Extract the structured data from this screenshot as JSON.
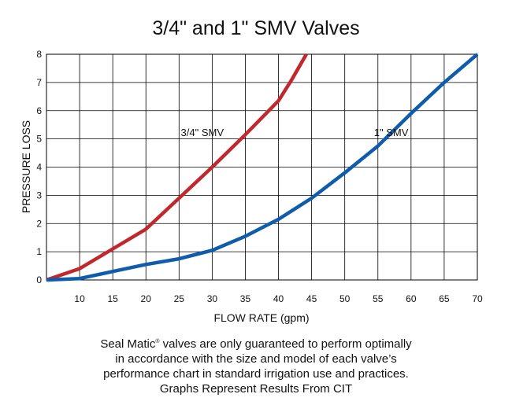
{
  "chart_data": {
    "type": "line",
    "title": "3/4\"  and 1\"  SMV Valves",
    "xlabel": "FLOW RATE (gpm)",
    "ylabel": "PRESSURE LOSS",
    "xlim": [
      5,
      70
    ],
    "ylim": [
      0,
      8
    ],
    "x_ticks": [
      10,
      15,
      20,
      25,
      30,
      35,
      40,
      45,
      50,
      55,
      60,
      65,
      70
    ],
    "y_ticks": [
      0,
      1,
      2,
      3,
      4,
      5,
      6,
      7,
      8
    ],
    "grid": true,
    "series": [
      {
        "name": "3/4\" SMV",
        "color": "#c0282d",
        "points": [
          [
            5,
            0
          ],
          [
            10,
            0.4
          ],
          [
            15,
            1.1
          ],
          [
            20,
            1.8
          ],
          [
            25,
            2.9
          ],
          [
            30,
            4.0
          ],
          [
            35,
            5.15
          ],
          [
            40,
            6.35
          ],
          [
            42,
            7.1
          ],
          [
            44.2,
            8.0
          ]
        ]
      },
      {
        "name": "1\" SMV",
        "color": "#0f5cac",
        "points": [
          [
            5,
            0
          ],
          [
            10,
            0.05
          ],
          [
            15,
            0.3
          ],
          [
            20,
            0.55
          ],
          [
            25,
            0.75
          ],
          [
            30,
            1.05
          ],
          [
            35,
            1.55
          ],
          [
            40,
            2.15
          ],
          [
            45,
            2.9
          ],
          [
            50,
            3.8
          ],
          [
            55,
            4.75
          ],
          [
            60,
            5.9
          ],
          [
            65,
            7.0
          ],
          [
            70,
            8.0
          ]
        ]
      }
    ]
  },
  "footnote": {
    "brand": "Seal Matic",
    "reg_mark": "®",
    "line1_rest": " valves are only guaranteed to perform optimally",
    "line2": "in accordance with the size and model of each valve’s",
    "line3": "performance chart in standard irrigation use and practices.",
    "source": "Graphs Represent Results From CIT"
  }
}
